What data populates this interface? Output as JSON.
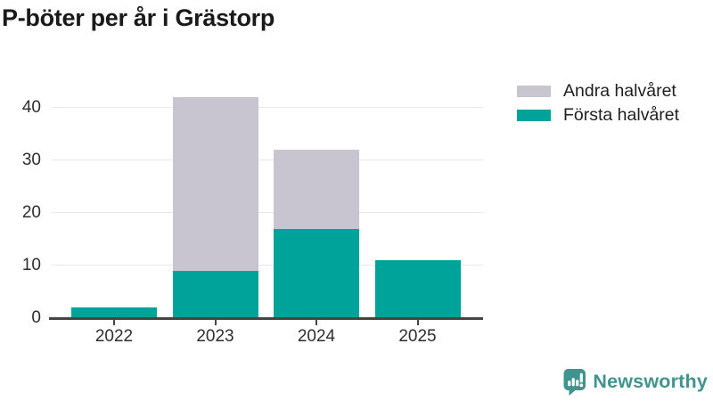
{
  "title": "P-böter per år i Grästorp",
  "chart_data": {
    "type": "bar",
    "stacked": true,
    "title": "P-böter per år i Grästorp",
    "categories": [
      "2022",
      "2023",
      "2024",
      "2025"
    ],
    "series": [
      {
        "name": "Första halvåret",
        "color": "#00a399",
        "values": [
          2,
          9,
          17,
          11
        ]
      },
      {
        "name": "Andra halvåret",
        "color": "#c8c5d0",
        "values": [
          0,
          33,
          15,
          0
        ]
      }
    ],
    "stack_totals": [
      2,
      42,
      32,
      11
    ],
    "xlabel": "",
    "ylabel": "",
    "ylim": [
      0,
      45
    ],
    "yticks": [
      0,
      10,
      20,
      30,
      40
    ],
    "grid": true,
    "legend_position": "top-right"
  },
  "legend": {
    "items": [
      {
        "label": "Andra halvåret",
        "color": "#c8c5d0"
      },
      {
        "label": "Första halvåret",
        "color": "#00a399"
      }
    ]
  },
  "branding": {
    "name": "Newsworthy",
    "icon": "newsworthy-bar-chart-bubble-icon",
    "color": "#41938d"
  },
  "colors": {
    "first_half": "#00a399",
    "second_half": "#c8c5d0",
    "axis": "#454545",
    "gridline": "#e8e8e8",
    "tick_text": "#2e2e2e",
    "title_text": "#1a1a1a"
  }
}
